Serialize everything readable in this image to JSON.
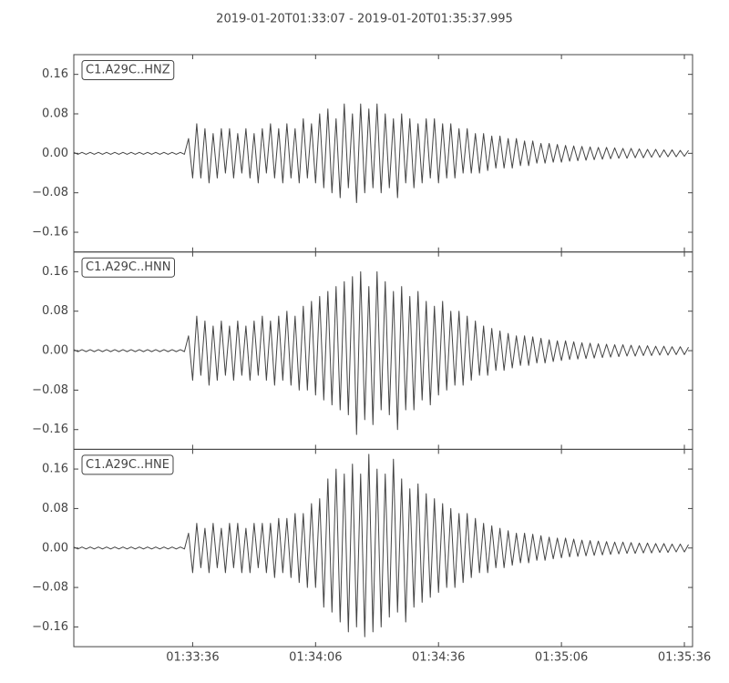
{
  "chart_data": [
    {
      "type": "line",
      "title": "2019-01-20T01:33:07  -  2019-01-20T01:35:37.995",
      "x": [
        0,
        1,
        2,
        3,
        4,
        5,
        6,
        7,
        8,
        9,
        10,
        11,
        12,
        13,
        14,
        15,
        16,
        17,
        18,
        19,
        20,
        21,
        22,
        23,
        24,
        25,
        26,
        27,
        28,
        29,
        30,
        31,
        32,
        33,
        34,
        35,
        36,
        37,
        38,
        39,
        40,
        41,
        42,
        43,
        44,
        45,
        46,
        47,
        48,
        49,
        50,
        51,
        52,
        53,
        54,
        55,
        56,
        57,
        58,
        59,
        60,
        61,
        62,
        63,
        64,
        65,
        66,
        67,
        68,
        69,
        70,
        71,
        72,
        73,
        74,
        75,
        76,
        77,
        78,
        79,
        80,
        81,
        82,
        83,
        84,
        85,
        86,
        87,
        88,
        89,
        90,
        91,
        92,
        93,
        94,
        95,
        96,
        97,
        98,
        99,
        100,
        101,
        102,
        103,
        104,
        105,
        106,
        107,
        108,
        109,
        110,
        111,
        112,
        113,
        114,
        115,
        116,
        117,
        118,
        119,
        120,
        121,
        122,
        123,
        124,
        125,
        126,
        127,
        128,
        129,
        130,
        131,
        132,
        133,
        134,
        135,
        136,
        137,
        138,
        139,
        140,
        141,
        142,
        143,
        144,
        145,
        146,
        147,
        148,
        149,
        150
      ],
      "series": [
        {
          "name": "C1.A29C..HNZ",
          "color": "#444444",
          "values": [
            0.002,
            -0.002,
            0.002,
            -0.002,
            0.002,
            -0.002,
            0.002,
            -0.002,
            0.002,
            -0.002,
            0.002,
            -0.002,
            0.002,
            -0.002,
            0.002,
            -0.002,
            0.002,
            -0.002,
            0.002,
            -0.002,
            0.002,
            -0.002,
            0.002,
            -0.002,
            0.002,
            -0.002,
            0.002,
            -0.002,
            0.03,
            -0.05,
            0.06,
            -0.05,
            0.05,
            -0.06,
            0.04,
            -0.05,
            0.05,
            -0.04,
            0.05,
            -0.05,
            0.04,
            -0.04,
            0.05,
            -0.05,
            0.04,
            -0.06,
            0.05,
            -0.04,
            0.06,
            -0.05,
            0.05,
            -0.06,
            0.06,
            -0.05,
            0.05,
            -0.06,
            0.07,
            -0.05,
            0.06,
            -0.06,
            0.08,
            -0.07,
            0.09,
            -0.08,
            0.07,
            -0.09,
            0.1,
            -0.07,
            0.08,
            -0.1,
            0.1,
            -0.08,
            0.09,
            -0.07,
            0.1,
            -0.08,
            0.08,
            -0.07,
            0.07,
            -0.09,
            0.08,
            -0.06,
            0.07,
            -0.07,
            0.06,
            -0.06,
            0.07,
            -0.05,
            0.07,
            -0.06,
            0.06,
            -0.05,
            0.06,
            -0.05,
            0.05,
            -0.04,
            0.05,
            -0.04,
            0.04,
            -0.04,
            0.04,
            -0.035,
            0.035,
            -0.03,
            0.035,
            -0.03,
            0.03,
            -0.03,
            0.03,
            -0.025,
            0.025,
            -0.025,
            0.025,
            -0.02,
            0.02,
            -0.02,
            0.02,
            -0.018,
            0.018,
            -0.018,
            0.016,
            -0.016,
            0.015,
            -0.015,
            0.014,
            -0.014,
            0.013,
            -0.013,
            0.012,
            -0.012,
            0.012,
            -0.011,
            0.011,
            -0.01,
            0.01,
            -0.01,
            0.01,
            -0.009,
            0.009,
            -0.009,
            0.008,
            -0.008,
            0.008,
            -0.008,
            0.007,
            -0.007,
            0.007,
            -0.007,
            0.006,
            -0.006,
            0.006
          ]
        }
      ],
      "xlim": [
        0,
        150.995
      ],
      "ylim": [
        -0.2,
        0.2
      ],
      "yticks": [
        {
          "value": -0.16,
          "label": "−0.16"
        },
        {
          "value": -0.08,
          "label": "−0.08"
        },
        {
          "value": 0,
          "label": "0.00"
        },
        0.08,
        0.16
      ]
    },
    {
      "type": "line",
      "x": [
        0,
        1,
        2,
        3,
        4,
        5,
        6,
        7,
        8,
        9,
        10,
        11,
        12,
        13,
        14,
        15,
        16,
        17,
        18,
        19,
        20,
        21,
        22,
        23,
        24,
        25,
        26,
        27,
        28,
        29,
        30,
        31,
        32,
        33,
        34,
        35,
        36,
        37,
        38,
        39,
        40,
        41,
        42,
        43,
        44,
        45,
        46,
        47,
        48,
        49,
        50,
        51,
        52,
        53,
        54,
        55,
        56,
        57,
        58,
        59,
        60,
        61,
        62,
        63,
        64,
        65,
        66,
        67,
        68,
        69,
        70,
        71,
        72,
        73,
        74,
        75,
        76,
        77,
        78,
        79,
        80,
        81,
        82,
        83,
        84,
        85,
        86,
        87,
        88,
        89,
        90,
        91,
        92,
        93,
        94,
        95,
        96,
        97,
        98,
        99,
        100,
        101,
        102,
        103,
        104,
        105,
        106,
        107,
        108,
        109,
        110,
        111,
        112,
        113,
        114,
        115,
        116,
        117,
        118,
        119,
        120,
        121,
        122,
        123,
        124,
        125,
        126,
        127,
        128,
        129,
        130,
        131,
        132,
        133,
        134,
        135,
        136,
        137,
        138,
        139,
        140,
        141,
        142,
        143,
        144,
        145,
        146,
        147,
        148,
        149,
        150
      ],
      "series": [
        {
          "name": "C1.A29C..HNN",
          "color": "#444444",
          "values": [
            0.002,
            -0.002,
            0.002,
            -0.002,
            0.002,
            -0.002,
            0.002,
            -0.002,
            0.002,
            -0.002,
            0.002,
            -0.002,
            0.002,
            -0.002,
            0.002,
            -0.002,
            0.002,
            -0.002,
            0.002,
            -0.002,
            0.002,
            -0.002,
            0.002,
            -0.002,
            0.002,
            -0.002,
            0.002,
            -0.002,
            0.03,
            -0.06,
            0.07,
            -0.05,
            0.06,
            -0.07,
            0.05,
            -0.06,
            0.06,
            -0.05,
            0.05,
            -0.06,
            0.06,
            -0.05,
            0.05,
            -0.06,
            0.06,
            -0.05,
            0.07,
            -0.06,
            0.06,
            -0.07,
            0.07,
            -0.06,
            0.08,
            -0.07,
            0.07,
            -0.08,
            0.09,
            -0.08,
            0.1,
            -0.09,
            0.11,
            -0.1,
            0.12,
            -0.11,
            0.13,
            -0.12,
            0.14,
            -0.13,
            0.15,
            -0.17,
            0.16,
            -0.14,
            0.13,
            -0.15,
            0.16,
            -0.12,
            0.14,
            -0.13,
            0.12,
            -0.16,
            0.13,
            -0.12,
            0.11,
            -0.12,
            0.12,
            -0.1,
            0.1,
            -0.11,
            0.09,
            -0.09,
            0.1,
            -0.08,
            0.08,
            -0.07,
            0.08,
            -0.07,
            0.07,
            -0.06,
            0.06,
            -0.05,
            0.05,
            -0.05,
            0.045,
            -0.04,
            0.04,
            -0.04,
            0.035,
            -0.035,
            0.03,
            -0.03,
            0.03,
            -0.03,
            0.028,
            -0.025,
            0.025,
            -0.025,
            0.022,
            -0.022,
            0.02,
            -0.02,
            0.02,
            -0.018,
            0.018,
            -0.017,
            0.016,
            -0.016,
            0.015,
            -0.015,
            0.014,
            -0.014,
            0.013,
            -0.013,
            0.012,
            -0.012,
            0.012,
            -0.011,
            0.011,
            -0.011,
            0.01,
            -0.01,
            0.01,
            -0.01,
            0.009,
            -0.009,
            0.009,
            -0.009,
            0.008,
            -0.008,
            0.008,
            -0.008,
            0.007
          ]
        }
      ],
      "xlim": [
        0,
        150.995
      ],
      "ylim": [
        -0.2,
        0.2
      ],
      "yticks": [
        {
          "value": -0.16,
          "label": "−0.16"
        },
        {
          "value": -0.08,
          "label": "−0.08"
        },
        {
          "value": 0,
          "label": "0.00"
        },
        0.08,
        0.16
      ]
    },
    {
      "type": "line",
      "x": [
        0,
        1,
        2,
        3,
        4,
        5,
        6,
        7,
        8,
        9,
        10,
        11,
        12,
        13,
        14,
        15,
        16,
        17,
        18,
        19,
        20,
        21,
        22,
        23,
        24,
        25,
        26,
        27,
        28,
        29,
        30,
        31,
        32,
        33,
        34,
        35,
        36,
        37,
        38,
        39,
        40,
        41,
        42,
        43,
        44,
        45,
        46,
        47,
        48,
        49,
        50,
        51,
        52,
        53,
        54,
        55,
        56,
        57,
        58,
        59,
        60,
        61,
        62,
        63,
        64,
        65,
        66,
        67,
        68,
        69,
        70,
        71,
        72,
        73,
        74,
        75,
        76,
        77,
        78,
        79,
        80,
        81,
        82,
        83,
        84,
        85,
        86,
        87,
        88,
        89,
        90,
        91,
        92,
        93,
        94,
        95,
        96,
        97,
        98,
        99,
        100,
        101,
        102,
        103,
        104,
        105,
        106,
        107,
        108,
        109,
        110,
        111,
        112,
        113,
        114,
        115,
        116,
        117,
        118,
        119,
        120,
        121,
        122,
        123,
        124,
        125,
        126,
        127,
        128,
        129,
        130,
        131,
        132,
        133,
        134,
        135,
        136,
        137,
        138,
        139,
        140,
        141,
        142,
        143,
        144,
        145,
        146,
        147,
        148,
        149,
        150
      ],
      "series": [
        {
          "name": "C1.A29C..HNE",
          "color": "#444444",
          "values": [
            0.002,
            -0.002,
            0.002,
            -0.002,
            0.002,
            -0.002,
            0.002,
            -0.002,
            0.002,
            -0.002,
            0.002,
            -0.002,
            0.002,
            -0.002,
            0.002,
            -0.002,
            0.002,
            -0.002,
            0.002,
            -0.002,
            0.002,
            -0.002,
            0.002,
            -0.002,
            0.002,
            -0.002,
            0.002,
            -0.002,
            0.03,
            -0.05,
            0.05,
            -0.04,
            0.04,
            -0.05,
            0.05,
            -0.04,
            0.04,
            -0.05,
            0.05,
            -0.04,
            0.05,
            -0.05,
            0.04,
            -0.05,
            0.05,
            -0.04,
            0.05,
            -0.05,
            0.05,
            -0.06,
            0.06,
            -0.05,
            0.06,
            -0.06,
            0.07,
            -0.07,
            0.07,
            -0.08,
            0.09,
            -0.08,
            0.1,
            -0.12,
            0.14,
            -0.13,
            0.16,
            -0.15,
            0.15,
            -0.17,
            0.17,
            -0.16,
            0.15,
            -0.18,
            0.19,
            -0.17,
            0.16,
            -0.16,
            0.15,
            -0.14,
            0.18,
            -0.13,
            0.14,
            -0.15,
            0.12,
            -0.12,
            0.13,
            -0.11,
            0.11,
            -0.1,
            0.1,
            -0.09,
            0.09,
            -0.08,
            0.08,
            -0.08,
            0.07,
            -0.07,
            0.07,
            -0.06,
            0.06,
            -0.05,
            0.05,
            -0.05,
            0.045,
            -0.04,
            0.04,
            -0.04,
            0.035,
            -0.035,
            0.03,
            -0.03,
            0.03,
            -0.03,
            0.028,
            -0.025,
            0.025,
            -0.025,
            0.022,
            -0.022,
            0.02,
            -0.02,
            0.02,
            -0.018,
            0.018,
            -0.017,
            0.016,
            -0.016,
            0.015,
            -0.015,
            0.014,
            -0.014,
            0.013,
            -0.013,
            0.012,
            -0.012,
            0.012,
            -0.011,
            0.011,
            -0.011,
            0.01,
            -0.01,
            0.01,
            -0.01,
            0.009,
            -0.009,
            0.009,
            -0.009,
            0.008,
            -0.008,
            0.008,
            -0.008,
            0.007
          ]
        }
      ],
      "xlim": [
        0,
        150.995
      ],
      "ylim": [
        -0.2,
        0.2
      ],
      "yticks": [
        {
          "value": -0.16,
          "label": "−0.16"
        },
        {
          "value": -0.08,
          "label": "−0.08"
        },
        {
          "value": 0,
          "label": "0.00"
        },
        0.08,
        0.16
      ],
      "xticks": [
        {
          "value": 29,
          "label": "01:33:36"
        },
        {
          "value": 59,
          "label": "01:34:06"
        },
        {
          "value": 89,
          "label": "01:34:36"
        },
        {
          "value": 119,
          "label": "01:35:06"
        },
        {
          "value": 149,
          "label": "01:35:36"
        }
      ]
    }
  ]
}
